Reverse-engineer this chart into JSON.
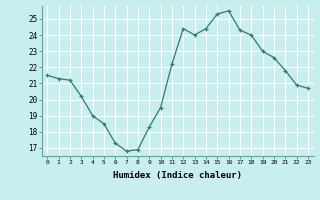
{
  "x": [
    0,
    1,
    2,
    3,
    4,
    5,
    6,
    7,
    8,
    9,
    10,
    11,
    12,
    13,
    14,
    15,
    16,
    17,
    18,
    19,
    20,
    21,
    22,
    23
  ],
  "y": [
    21.5,
    21.3,
    21.2,
    20.2,
    19.0,
    18.5,
    17.3,
    16.8,
    16.9,
    18.3,
    19.5,
    22.2,
    24.4,
    24.0,
    24.4,
    25.3,
    25.5,
    24.3,
    24.0,
    23.0,
    22.6,
    21.8,
    20.9,
    20.7
  ],
  "line_color": "#2e7d6e",
  "marker": "+",
  "bg_color": "#c8eef0",
  "grid_color": "#ffffff",
  "xlabel": "Humidex (Indice chaleur)",
  "ylabel_ticks": [
    17,
    18,
    19,
    20,
    21,
    22,
    23,
    24,
    25
  ],
  "xtick_labels": [
    "0",
    "1",
    "2",
    "3",
    "4",
    "5",
    "6",
    "7",
    "8",
    "9",
    "10",
    "11",
    "12",
    "13",
    "14",
    "15",
    "16",
    "17",
    "18",
    "19",
    "20",
    "21",
    "22",
    "23"
  ],
  "ylim": [
    16.5,
    25.8
  ],
  "xlim": [
    -0.5,
    23.5
  ]
}
